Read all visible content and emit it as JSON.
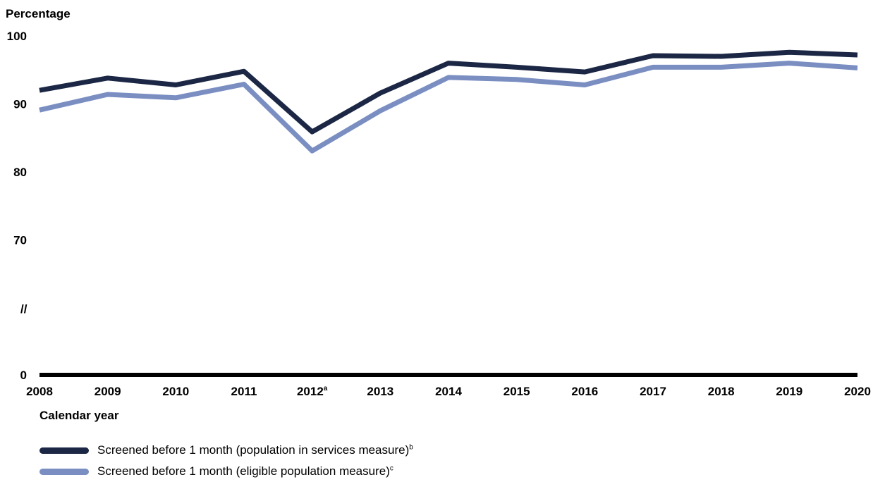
{
  "chart_data": {
    "type": "line",
    "ylabel": "Percentage",
    "xlabel": "Calendar year",
    "axis_break_marker": "//",
    "x": [
      "2008",
      "2009",
      "2010",
      "2011",
      "2012",
      "2013",
      "2014",
      "2015",
      "2016",
      "2017",
      "2018",
      "2019",
      "2020"
    ],
    "x_tick_superscripts": {
      "2012": "a"
    },
    "y_ticks": [
      "100",
      "90",
      "80",
      "70",
      "0"
    ],
    "ylim": [
      0,
      100
    ],
    "y_axis_break": [
      0,
      70
    ],
    "grid": false,
    "legend_position": "bottom-left",
    "series": [
      {
        "name": "Screened before 1 month (population in services measure)",
        "name_superscript": "b",
        "color": "#1b2744",
        "values": [
          92.0,
          93.8,
          92.8,
          94.8,
          85.9,
          91.6,
          96.0,
          95.4,
          94.7,
          97.1,
          97.0,
          97.6,
          97.2
        ]
      },
      {
        "name": "Screened before 1 month (eligible population measure)",
        "name_superscript": "c",
        "color": "#7a8ec2",
        "values": [
          89.1,
          91.4,
          90.9,
          92.9,
          83.1,
          89.0,
          93.9,
          93.6,
          92.8,
          95.4,
          95.4,
          96.0,
          95.3
        ]
      }
    ]
  }
}
